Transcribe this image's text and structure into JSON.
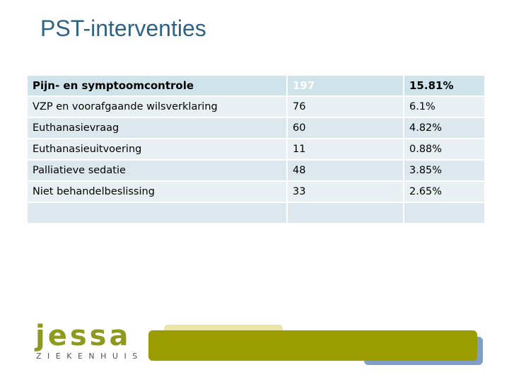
{
  "header": {
    "title": "PST-interventies"
  },
  "table": {
    "rows": [
      [
        "Pijn- en symptoomcontrole",
        "197",
        "15.81%"
      ],
      [
        "VZP en voorafgaande wilsverklaring",
        "76",
        "6.1%"
      ],
      [
        "Euthanasievraag",
        "60",
        "4.82%"
      ],
      [
        "Euthanasieuitvoering",
        "11",
        "0.88%"
      ],
      [
        "Palliatieve sedatie",
        "48",
        "3.85%"
      ],
      [
        "Niet behandelbeslissing",
        "33",
        "2.65%"
      ]
    ]
  },
  "logo": {
    "name": "jessa",
    "subtitle": "ZIEKENHUIS"
  }
}
